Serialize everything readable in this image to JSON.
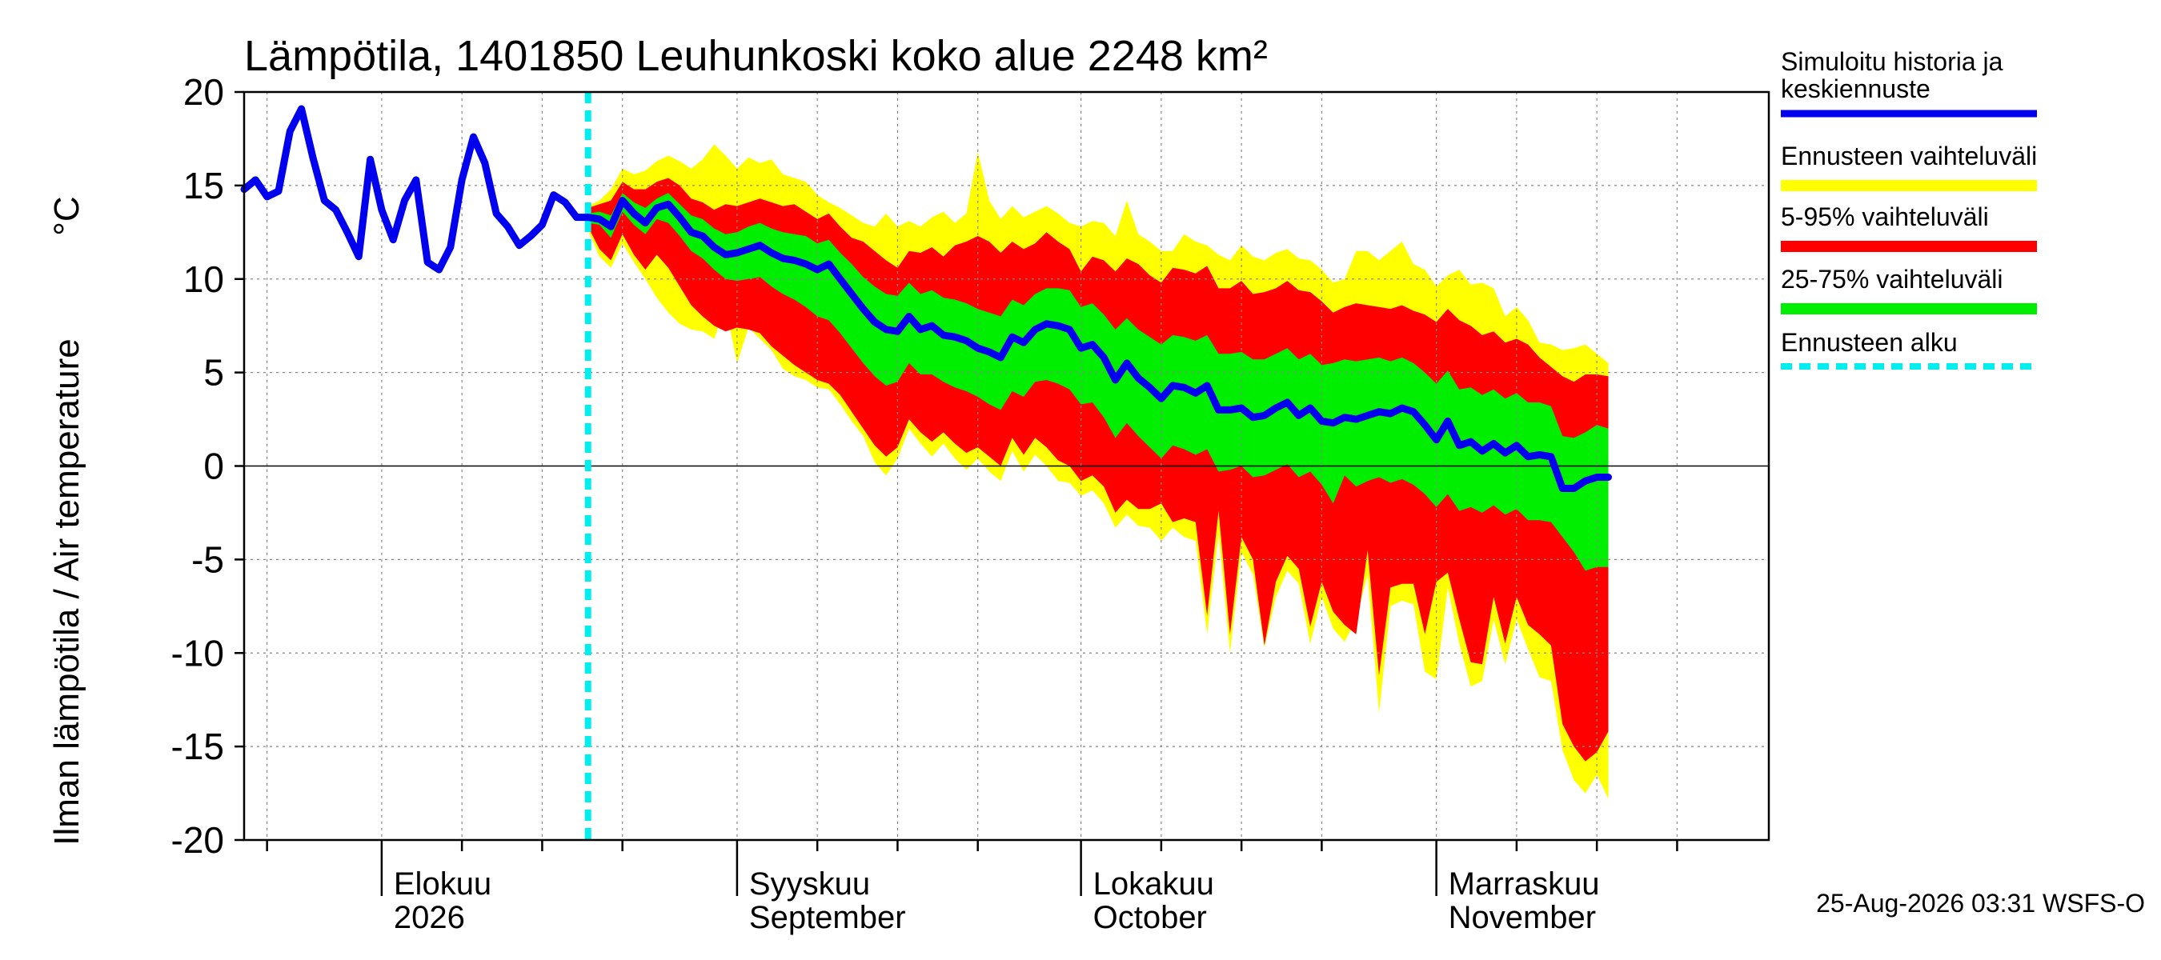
{
  "chart_data": {
    "type": "area",
    "title": "Lämpötila, 1401850 Leuhunkoski koko alue 2248 km²",
    "ylabel": "Ilman lämpötila / Air temperature",
    "yunit": "°C",
    "ylim": [
      -20,
      20
    ],
    "yticks": [
      -20,
      -15,
      -10,
      -5,
      0,
      5,
      10,
      15,
      20
    ],
    "xlim": [
      "2026-07-20",
      "2026-11-30"
    ],
    "grid": true,
    "legend_position": "right",
    "months": [
      {
        "line1": "Elokuu",
        "line2": "2026",
        "date": "2026-08-01"
      },
      {
        "line1": "Syyskuu",
        "line2": "September",
        "date": "2026-09-01"
      },
      {
        "line1": "Lokakuu",
        "line2": "October",
        "date": "2026-10-01"
      },
      {
        "line1": "Marraskuu",
        "line2": "November",
        "date": "2026-11-01"
      }
    ],
    "forecast_start": "2026-08-19",
    "history": {
      "name": "Simuloitu historia ja keskiennuste",
      "color": "#0000ee",
      "start_date": "2026-07-20",
      "values": [
        14.8,
        15.3,
        14.4,
        14.7,
        17.9,
        19.1,
        16.5,
        14.2,
        13.7,
        12.5,
        11.2,
        16.4,
        13.7,
        12.1,
        14.2,
        15.3,
        10.9,
        10.5,
        11.7,
        15.3,
        17.6,
        16.2,
        13.5,
        12.8,
        11.8,
        12.3,
        12.9,
        14.5,
        14.1,
        13.3,
        13.3
      ]
    },
    "forecast": {
      "start_date": "2026-08-19",
      "median": [
        13.3,
        13.2,
        12.8,
        14.2,
        13.5,
        13.0,
        13.8,
        14.0,
        13.3,
        12.5,
        12.3,
        11.7,
        11.3,
        11.4,
        11.6,
        11.8,
        11.4,
        11.1,
        11.0,
        10.8,
        10.5,
        10.8,
        10.0,
        9.2,
        8.4,
        7.7,
        7.3,
        7.2,
        8.0,
        7.3,
        7.5,
        7.0,
        6.9,
        6.7,
        6.3,
        6.1,
        5.8,
        6.9,
        6.6,
        7.3,
        7.6,
        7.5,
        7.3,
        6.3,
        6.5,
        5.8,
        4.6,
        5.5,
        4.7,
        4.2,
        3.6,
        4.3,
        4.2,
        3.9,
        4.3,
        3.0,
        3.0,
        3.1,
        2.6,
        2.7,
        3.1,
        3.4,
        2.7,
        3.1,
        2.4,
        2.3,
        2.6,
        2.5,
        2.7,
        2.9,
        2.8,
        3.1,
        2.9,
        2.2,
        1.4,
        2.4,
        1.1,
        1.3,
        0.8,
        1.2,
        0.7,
        1.1,
        0.5,
        0.6,
        0.5,
        -1.2,
        -1.2,
        -0.8,
        -0.6,
        -0.6
      ],
      "p25": [
        13.0,
        12.9,
        12.2,
        13.6,
        12.9,
        12.4,
        13.2,
        13.0,
        12.3,
        11.5,
        11.1,
        10.5,
        10.0,
        9.9,
        10.0,
        10.1,
        9.6,
        9.2,
        8.9,
        8.5,
        8.0,
        7.8,
        7.1,
        6.3,
        5.5,
        4.8,
        4.3,
        4.5,
        5.5,
        4.9,
        4.9,
        4.5,
        4.2,
        4.0,
        3.7,
        3.3,
        3.0,
        4.0,
        3.7,
        4.5,
        4.6,
        4.4,
        4.1,
        3.3,
        3.4,
        2.6,
        1.5,
        2.3,
        1.6,
        1.0,
        0.4,
        1.1,
        0.9,
        0.6,
        0.9,
        -0.3,
        -0.2,
        0.0,
        -0.6,
        -0.5,
        -0.2,
        0.1,
        -0.6,
        -0.3,
        -1.0,
        -2.0,
        -0.5,
        -1.1,
        -0.8,
        -0.6,
        -0.9,
        -0.7,
        -1.0,
        -1.5,
        -2.2,
        -1.5,
        -2.4,
        -2.2,
        -2.5,
        -2.1,
        -2.6,
        -2.3,
        -2.9,
        -2.9,
        -3.0,
        -3.8,
        -4.6,
        -5.6,
        -5.4,
        -5.4
      ],
      "p75": [
        13.5,
        13.6,
        13.4,
        14.6,
        14.1,
        13.8,
        14.3,
        14.6,
        14.0,
        13.4,
        13.2,
        12.7,
        12.4,
        12.5,
        12.8,
        13.0,
        12.7,
        12.5,
        12.4,
        12.3,
        11.9,
        12.1,
        11.4,
        10.8,
        10.1,
        9.6,
        9.2,
        9.1,
        9.8,
        9.2,
        9.4,
        9.0,
        8.9,
        8.7,
        8.4,
        8.2,
        8.0,
        8.9,
        8.6,
        9.2,
        9.5,
        9.5,
        9.4,
        8.5,
        8.7,
        8.1,
        7.3,
        7.9,
        7.3,
        6.9,
        6.5,
        7.0,
        6.9,
        6.7,
        7.0,
        6.0,
        6.0,
        6.1,
        5.7,
        5.7,
        6.0,
        6.3,
        5.7,
        6.0,
        5.4,
        5.5,
        5.7,
        5.6,
        5.7,
        5.8,
        5.6,
        5.8,
        5.5,
        5.0,
        4.4,
        5.1,
        4.1,
        4.2,
        3.8,
        4.1,
        3.6,
        3.9,
        3.4,
        3.4,
        3.2,
        1.6,
        1.5,
        1.8,
        2.2,
        2.0
      ],
      "p5": [
        12.8,
        11.6,
        11.0,
        12.4,
        11.3,
        10.5,
        11.3,
        10.6,
        9.6,
        8.6,
        8.0,
        7.5,
        7.2,
        7.4,
        7.3,
        7.1,
        6.4,
        5.9,
        5.4,
        5.0,
        4.6,
        4.4,
        3.8,
        2.9,
        2.0,
        1.1,
        0.5,
        1.0,
        2.5,
        1.8,
        1.3,
        1.8,
        1.2,
        0.7,
        1.0,
        0.5,
        0.0,
        1.5,
        0.6,
        1.5,
        1.0,
        0.3,
        0.0,
        -0.8,
        -0.5,
        -1.1,
        -2.5,
        -1.8,
        -2.3,
        -2.3,
        -2.0,
        -3.0,
        -2.8,
        -3.0,
        -8.0,
        -2.4,
        -9.0,
        -3.8,
        -5.0,
        -9.6,
        -6.2,
        -4.8,
        -5.5,
        -8.6,
        -6.2,
        -7.8,
        -8.5,
        -9.0,
        -4.5,
        -11.2,
        -6.5,
        -6.3,
        -6.3,
        -9.0,
        -6.2,
        -5.7,
        -8.2,
        -10.5,
        -10.6,
        -7.0,
        -9.5,
        -7.0,
        -8.5,
        -9.0,
        -9.6,
        -13.8,
        -15.0,
        -15.8,
        -15.3,
        -14.2
      ],
      "p95": [
        13.8,
        14.0,
        14.2,
        15.2,
        14.8,
        14.8,
        15.2,
        15.4,
        15.0,
        14.3,
        14.1,
        13.7,
        14.0,
        13.9,
        14.1,
        14.3,
        14.1,
        13.9,
        14.0,
        13.6,
        13.2,
        13.5,
        12.8,
        12.2,
        12.0,
        11.5,
        11.0,
        10.6,
        11.5,
        11.4,
        11.7,
        11.2,
        11.8,
        12.0,
        12.3,
        12.0,
        11.4,
        12.0,
        11.6,
        11.9,
        12.5,
        12.0,
        11.6,
        10.4,
        11.2,
        11.0,
        10.4,
        11.1,
        10.8,
        10.2,
        9.8,
        10.6,
        10.5,
        10.3,
        10.7,
        9.5,
        9.5,
        9.9,
        9.2,
        9.3,
        9.5,
        9.9,
        9.4,
        9.3,
        8.8,
        8.2,
        8.5,
        8.7,
        8.6,
        8.5,
        8.4,
        8.6,
        8.3,
        8.1,
        7.7,
        8.4,
        7.8,
        7.5,
        7.0,
        7.2,
        6.6,
        6.8,
        6.5,
        5.8,
        5.3,
        4.8,
        4.5,
        4.9,
        4.9,
        4.8
      ],
      "min": [
        12.6,
        11.2,
        10.6,
        11.9,
        10.9,
        10.0,
        9.0,
        8.2,
        7.6,
        7.3,
        7.2,
        6.8,
        8.5,
        5.5,
        7.4,
        6.8,
        6.2,
        5.2,
        4.8,
        4.6,
        4.2,
        4.1,
        3.3,
        2.4,
        1.6,
        0.2,
        -0.5,
        0.4,
        2.0,
        1.2,
        0.5,
        1.2,
        0.4,
        -0.2,
        0.4,
        -0.3,
        -0.8,
        0.8,
        -0.3,
        0.6,
        0.0,
        -0.8,
        -0.9,
        -1.6,
        -1.3,
        -2.0,
        -3.3,
        -2.6,
        -3.2,
        -3.3,
        -4.0,
        -3.3,
        -3.8,
        -4.0,
        -9.0,
        -3.6,
        -10.0,
        -4.6,
        -5.8,
        -9.7,
        -7.0,
        -5.6,
        -6.3,
        -9.5,
        -7.0,
        -8.7,
        -9.4,
        -8.2,
        -5.8,
        -13.2,
        -7.5,
        -7.2,
        -7.4,
        -11.0,
        -11.4,
        -6.5,
        -9.5,
        -11.8,
        -11.5,
        -8.2,
        -10.6,
        -8.2,
        -9.8,
        -11.3,
        -11.5,
        -15.2,
        -16.8,
        -17.5,
        -16.5,
        -17.8
      ],
      "max": [
        13.9,
        14.2,
        14.8,
        15.9,
        15.6,
        15.8,
        16.3,
        16.6,
        16.3,
        15.9,
        16.4,
        17.2,
        16.6,
        15.9,
        16.5,
        16.2,
        16.4,
        15.6,
        15.4,
        15.2,
        14.5,
        14.1,
        13.8,
        13.4,
        13.0,
        12.8,
        13.5,
        12.8,
        13.1,
        12.8,
        13.3,
        13.6,
        13.0,
        13.5,
        16.8,
        14.2,
        13.2,
        13.9,
        13.3,
        13.6,
        13.9,
        13.5,
        13.0,
        12.8,
        13.1,
        13.0,
        12.3,
        14.2,
        12.4,
        12.0,
        11.5,
        11.5,
        12.4,
        12.0,
        11.8,
        11.3,
        11.0,
        11.8,
        11.2,
        11.0,
        11.4,
        11.6,
        11.1,
        11.0,
        10.5,
        9.8,
        10.0,
        11.5,
        11.5,
        11.0,
        11.5,
        12.0,
        10.8,
        10.5,
        9.6,
        10.2,
        10.5,
        9.7,
        9.8,
        9.5,
        8.0,
        8.5,
        7.8,
        6.6,
        6.5,
        6.2,
        6.3,
        6.5,
        6.0,
        5.5
      ]
    },
    "colors": {
      "history": "#0000ee",
      "range": "#ffff00",
      "p5_95": "#ff0000",
      "p25_75": "#00ee00",
      "forecast_start": "#00eeee"
    },
    "legend": [
      {
        "label": "Simuloitu historia ja keskiennuste",
        "kind": "line",
        "color": "#0000ee"
      },
      {
        "label": "Ennusteen vaihteluväli",
        "kind": "band",
        "color": "#ffff00"
      },
      {
        "label": "5-95% vaihteluväli",
        "kind": "band",
        "color": "#ff0000"
      },
      {
        "label": "25-75% vaihteluväli",
        "kind": "band",
        "color": "#00ee00"
      },
      {
        "label": "Ennusteen alku",
        "kind": "dashed",
        "color": "#00eeee"
      }
    ],
    "footer": "25-Aug-2026 03:31 WSFS-O"
  }
}
